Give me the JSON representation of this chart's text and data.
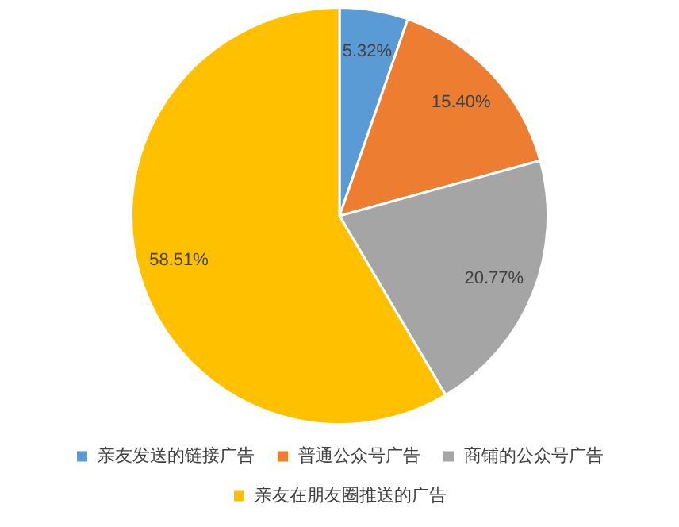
{
  "chart_data": {
    "type": "pie",
    "categories": [
      "亲友发送的链接广告",
      "普通公众号广告",
      "商铺的公众号广告",
      "亲友在朋友圈推送的广告"
    ],
    "values": [
      5.32,
      15.4,
      20.77,
      58.51
    ],
    "value_labels": [
      "5.32%",
      "15.40%",
      "20.77%",
      "58.51%"
    ],
    "colors": [
      "#5b9bd5",
      "#ed7d31",
      "#a5a5a5",
      "#ffc000"
    ],
    "legend": "bottom"
  }
}
